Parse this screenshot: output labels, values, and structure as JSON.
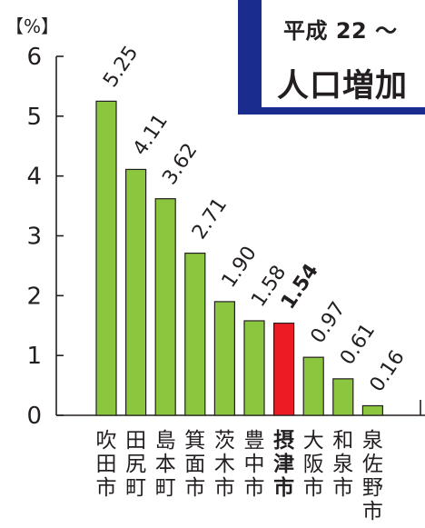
{
  "title": {
    "line1": "平成 22 〜",
    "line2": "人口増加"
  },
  "chart_data": {
    "type": "bar",
    "ylabel": "【%】",
    "ylim": [
      0,
      6
    ],
    "yticks": [
      0,
      1,
      2,
      3,
      4,
      5,
      6
    ],
    "categories": [
      "吹田市",
      "田尻町",
      "島本町",
      "箕面市",
      "茨木市",
      "豊中市",
      "摂津市",
      "大阪市",
      "和泉市",
      "泉佐野市"
    ],
    "values": [
      5.25,
      4.11,
      3.62,
      2.71,
      1.9,
      1.58,
      1.54,
      0.97,
      0.61,
      0.16
    ],
    "value_labels": [
      "5.25",
      "4.11",
      "3.62",
      "2.71",
      "1.90",
      "1.58",
      "1.54",
      "0.97",
      "0.61",
      "0.16"
    ],
    "highlight_index": 6,
    "colors": {
      "bar": "#8cc63f",
      "highlight": "#ed1c24",
      "outline": "#231f20"
    }
  }
}
